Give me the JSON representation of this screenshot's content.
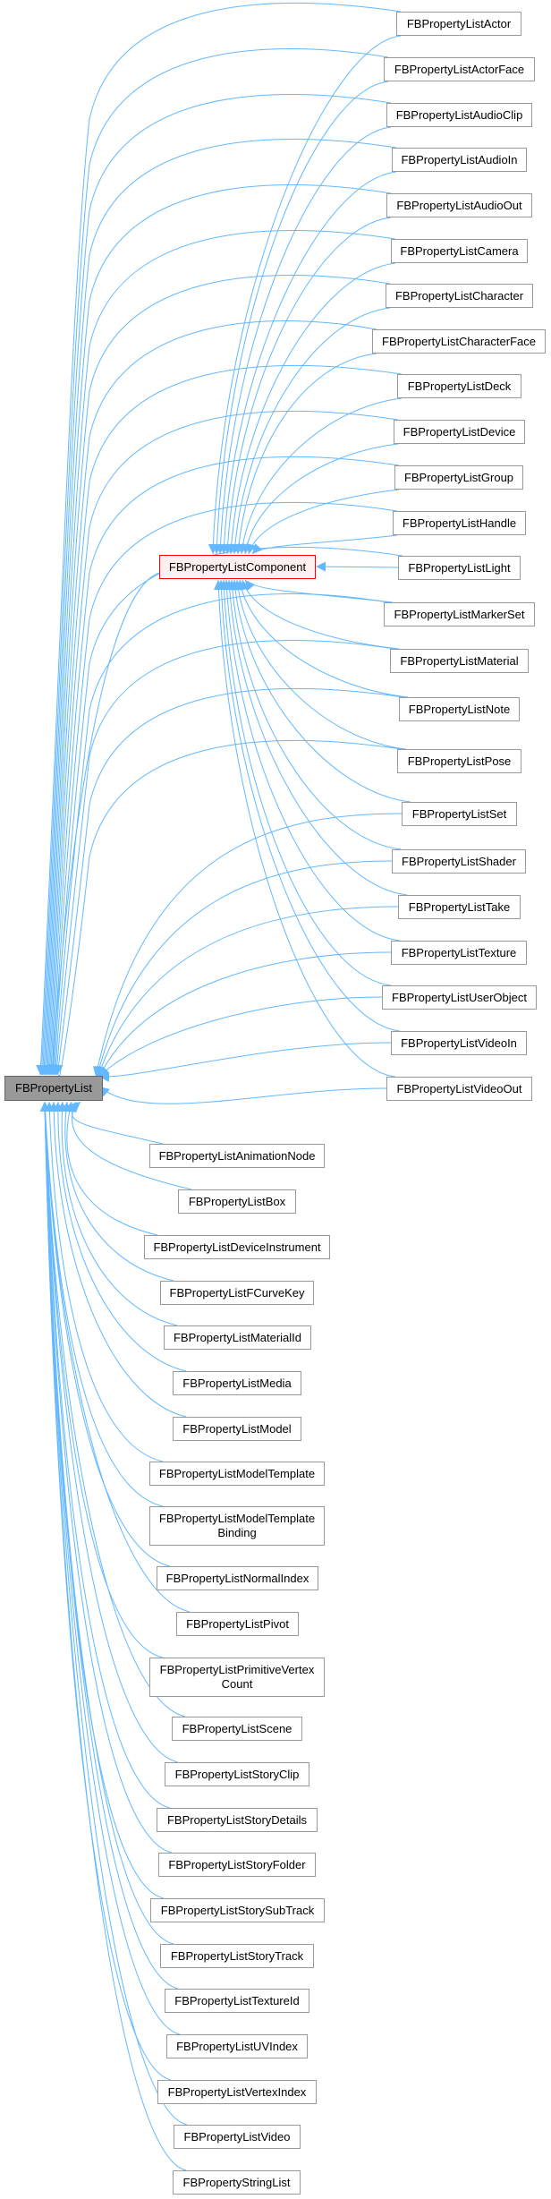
{
  "colors": {
    "edge": "#63b8ff",
    "node_border": "#999999",
    "base_fill": "#999999",
    "base_border": "#666666",
    "component_fill": "#fff0f0",
    "component_border": "#ff0000"
  },
  "base": {
    "label": "FBPropertyList"
  },
  "component": {
    "label": "FBPropertyListComponent"
  },
  "component_children": [
    {
      "label": "FBPropertyListActor"
    },
    {
      "label": "FBPropertyListActorFace"
    },
    {
      "label": "FBPropertyListAudioClip"
    },
    {
      "label": "FBPropertyListAudioIn"
    },
    {
      "label": "FBPropertyListAudioOut"
    },
    {
      "label": "FBPropertyListCamera"
    },
    {
      "label": "FBPropertyListCharacter"
    },
    {
      "label": "FBPropertyListCharacterFace"
    },
    {
      "label": "FBPropertyListDeck"
    },
    {
      "label": "FBPropertyListDevice"
    },
    {
      "label": "FBPropertyListGroup"
    },
    {
      "label": "FBPropertyListHandle"
    },
    {
      "label": "FBPropertyListLight"
    },
    {
      "label": "FBPropertyListMarkerSet"
    },
    {
      "label": "FBPropertyListMaterial"
    },
    {
      "label": "FBPropertyListNote"
    },
    {
      "label": "FBPropertyListPose"
    },
    {
      "label": "FBPropertyListSet"
    },
    {
      "label": "FBPropertyListShader"
    },
    {
      "label": "FBPropertyListTake"
    },
    {
      "label": "FBPropertyListTexture"
    },
    {
      "label": "FBPropertyListUserObject"
    },
    {
      "label": "FBPropertyListVideoIn"
    },
    {
      "label": "FBPropertyListVideoOut"
    }
  ],
  "direct_children": [
    {
      "lines": [
        "FBPropertyListAnimationNode"
      ]
    },
    {
      "lines": [
        "FBPropertyListBox"
      ]
    },
    {
      "lines": [
        "FBPropertyListDeviceInstrument"
      ]
    },
    {
      "lines": [
        "FBPropertyListFCurveKey"
      ]
    },
    {
      "lines": [
        "FBPropertyListMaterialId"
      ]
    },
    {
      "lines": [
        "FBPropertyListMedia"
      ]
    },
    {
      "lines": [
        "FBPropertyListModel"
      ]
    },
    {
      "lines": [
        "FBPropertyListModelTemplate"
      ]
    },
    {
      "lines": [
        "FBPropertyListModelTemplate",
        "Binding"
      ]
    },
    {
      "lines": [
        "FBPropertyListNormalIndex"
      ]
    },
    {
      "lines": [
        "FBPropertyListPivot"
      ]
    },
    {
      "lines": [
        "FBPropertyListPrimitiveVertex",
        "Count"
      ]
    },
    {
      "lines": [
        "FBPropertyListScene"
      ]
    },
    {
      "lines": [
        "FBPropertyListStoryClip"
      ]
    },
    {
      "lines": [
        "FBPropertyListStoryDetails"
      ]
    },
    {
      "lines": [
        "FBPropertyListStoryFolder"
      ]
    },
    {
      "lines": [
        "FBPropertyListStorySubTrack"
      ]
    },
    {
      "lines": [
        "FBPropertyListStoryTrack"
      ]
    },
    {
      "lines": [
        "FBPropertyListTextureId"
      ]
    },
    {
      "lines": [
        "FBPropertyListUVIndex"
      ]
    },
    {
      "lines": [
        "FBPropertyListVertexIndex"
      ]
    },
    {
      "lines": [
        "FBPropertyListVideo"
      ]
    },
    {
      "lines": [
        "FBPropertyStringList"
      ]
    }
  ]
}
